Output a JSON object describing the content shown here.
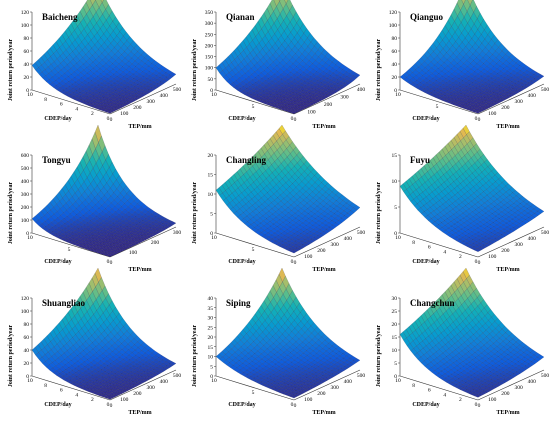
{
  "figure": {
    "zlabel": "Joint return period/year",
    "xlabel": "TEP/mm",
    "ylabel": "CDEP/day",
    "panels": [
      {
        "title": "Baicheng",
        "zticks": [
          "0",
          "20",
          "40",
          "60",
          "80",
          "100",
          "120"
        ],
        "xticks": [
          "0",
          "100",
          "200",
          "300",
          "400",
          "500"
        ],
        "yticks": [
          "0",
          "2",
          "4",
          "6",
          "8",
          "10"
        ],
        "zlabel": "Joint return period/year",
        "xlabel": "TEP/mm",
        "ylabel": "CDEP/day"
      },
      {
        "title": "Qianan",
        "zticks": [
          "0",
          "50",
          "100",
          "150",
          "200",
          "250",
          "300",
          "350"
        ],
        "xticks": [
          "0",
          "100",
          "200",
          "300",
          "400"
        ],
        "yticks": [
          "0",
          "5",
          "10"
        ],
        "zlabel": "Joint return period/year",
        "xlabel": "TEP/mm",
        "ylabel": "CDEP/day"
      },
      {
        "title": "Qianguo",
        "zticks": [
          "0",
          "20",
          "40",
          "60",
          "80",
          "100",
          "120"
        ],
        "xticks": [
          "0",
          "100",
          "200",
          "300",
          "400",
          "500"
        ],
        "yticks": [
          "0",
          "5",
          "10"
        ],
        "zlabel": "Joint return period/year",
        "xlabel": "TEP/mm",
        "ylabel": "CDEP/day"
      },
      {
        "title": "Tongyu",
        "zticks": [
          "0",
          "100",
          "200",
          "300",
          "400",
          "500",
          "600"
        ],
        "xticks": [
          "0",
          "100",
          "200",
          "300"
        ],
        "yticks": [
          "0",
          "5",
          "10"
        ],
        "zlabel": "Joint return period/year",
        "xlabel": "TEP/mm",
        "ylabel": "CDEP/day"
      },
      {
        "title": "Changling",
        "zticks": [
          "0",
          "5",
          "10",
          "15",
          "20"
        ],
        "xticks": [
          "0",
          "100",
          "200",
          "300",
          "400",
          "500"
        ],
        "yticks": [
          "0",
          "5",
          "10"
        ],
        "zlabel": "Joint return period/year",
        "xlabel": "TEP/mm",
        "ylabel": "CDEP/day"
      },
      {
        "title": "Fuyu",
        "zticks": [
          "0",
          "5",
          "10",
          "15"
        ],
        "xticks": [
          "0",
          "100",
          "200",
          "300",
          "400",
          "500"
        ],
        "yticks": [
          "0",
          "2",
          "4",
          "6",
          "8",
          "10"
        ],
        "zlabel": "Joint return period/year",
        "xlabel": "TEP/mm",
        "ylabel": "CDEP/day"
      },
      {
        "title": "Shuangliao",
        "zticks": [
          "0",
          "20",
          "40",
          "60",
          "80",
          "100",
          "120"
        ],
        "xticks": [
          "0",
          "100",
          "200",
          "300",
          "400",
          "500"
        ],
        "yticks": [
          "0",
          "2",
          "4",
          "6",
          "8",
          "10"
        ],
        "zlabel": "Joint return period/year",
        "xlabel": "TEP/mm",
        "ylabel": "CDEP/day"
      },
      {
        "title": "Siping",
        "zticks": [
          "0",
          "5",
          "10",
          "15",
          "20",
          "25",
          "30",
          "35",
          "40"
        ],
        "xticks": [
          "0",
          "100",
          "200",
          "300",
          "400",
          "500"
        ],
        "yticks": [
          "0",
          "5",
          "10"
        ],
        "zlabel": "Joint return period/year",
        "xlabel": "TEP/mm",
        "ylabel": "CDEP/day"
      },
      {
        "title": "Changchun",
        "zticks": [
          "0",
          "5",
          "10",
          "15",
          "20",
          "25",
          "30"
        ],
        "xticks": [
          "0",
          "100",
          "200",
          "300",
          "400",
          "500"
        ],
        "yticks": [
          "0",
          "2",
          "4",
          "6",
          "8",
          "10"
        ],
        "zlabel": "Joint return period/year",
        "xlabel": "TEP/mm",
        "ylabel": "CDEP/day"
      }
    ]
  },
  "chart_data": [
    {
      "type": "surface",
      "title": "Baicheng",
      "zlabel": "Joint return period/year",
      "xlabel": "TEP/mm",
      "ylabel": "CDEP/day",
      "xlim": [
        0,
        500
      ],
      "ylim": [
        0,
        10
      ],
      "zlim": [
        0,
        120
      ],
      "corner_values": {
        "x0_y0": 1,
        "xmax_y0": 15,
        "x0_ymax": 38,
        "xmax_ymax": 120
      }
    },
    {
      "type": "surface",
      "title": "Qianan",
      "zlabel": "Joint return period/year",
      "xlabel": "TEP/mm",
      "ylabel": "CDEP/day",
      "xlim": [
        0,
        400
      ],
      "ylim": [
        0,
        10
      ],
      "zlim": [
        0,
        350
      ],
      "corner_values": {
        "x0_y0": 1,
        "xmax_y0": 40,
        "x0_ymax": 100,
        "xmax_ymax": 350
      }
    },
    {
      "type": "surface",
      "title": "Qianguo",
      "zlabel": "Joint return period/year",
      "xlabel": "TEP/mm",
      "ylabel": "CDEP/day",
      "xlim": [
        0,
        500
      ],
      "ylim": [
        0,
        10
      ],
      "zlim": [
        0,
        120
      ],
      "corner_values": {
        "x0_y0": 1,
        "xmax_y0": 12,
        "x0_ymax": 20,
        "xmax_ymax": 120
      }
    },
    {
      "type": "surface",
      "title": "Tongyu",
      "zlabel": "Joint return period/year",
      "xlabel": "TEP/mm",
      "ylabel": "CDEP/day",
      "xlim": [
        0,
        300
      ],
      "ylim": [
        0,
        10
      ],
      "zlim": [
        0,
        600
      ],
      "corner_values": {
        "x0_y0": 1,
        "xmax_y0": 30,
        "x0_ymax": 110,
        "xmax_ymax": 600
      }
    },
    {
      "type": "surface",
      "title": "Changling",
      "zlabel": "Joint return period/year",
      "xlabel": "TEP/mm",
      "ylabel": "CDEP/day",
      "xlim": [
        0,
        500
      ],
      "ylim": [
        0,
        10
      ],
      "zlim": [
        0,
        20
      ],
      "corner_values": {
        "x0_y0": 1,
        "xmax_y0": 5,
        "x0_ymax": 11,
        "xmax_ymax": 20
      }
    },
    {
      "type": "surface",
      "title": "Fuyu",
      "zlabel": "Joint return period/year",
      "xlabel": "TEP/mm",
      "ylabel": "CDEP/day",
      "xlim": [
        0,
        500
      ],
      "ylim": [
        0,
        10
      ],
      "zlim": [
        0,
        15
      ],
      "corner_values": {
        "x0_y0": 1,
        "xmax_y0": 3,
        "x0_ymax": 9,
        "xmax_ymax": 15
      }
    },
    {
      "type": "surface",
      "title": "Shuangliao",
      "zlabel": "Joint return period/year",
      "xlabel": "TEP/mm",
      "ylabel": "CDEP/day",
      "xlim": [
        0,
        500
      ],
      "ylim": [
        0,
        10
      ],
      "zlim": [
        0,
        120
      ],
      "corner_values": {
        "x0_y0": 1,
        "xmax_y0": 10,
        "x0_ymax": 40,
        "xmax_ymax": 120
      }
    },
    {
      "type": "surface",
      "title": "Siping",
      "zlabel": "Joint return period/year",
      "xlabel": "TEP/mm",
      "ylabel": "CDEP/day",
      "xlim": [
        0,
        500
      ],
      "ylim": [
        0,
        10
      ],
      "zlim": [
        0,
        40
      ],
      "corner_values": {
        "x0_y0": 1,
        "xmax_y0": 5,
        "x0_ymax": 10,
        "xmax_ymax": 40
      }
    },
    {
      "type": "surface",
      "title": "Changchun",
      "zlabel": "Joint return period/year",
      "xlabel": "TEP/mm",
      "ylabel": "CDEP/day",
      "xlim": [
        0,
        500
      ],
      "ylim": [
        0,
        10
      ],
      "zlim": [
        0,
        30
      ],
      "corner_values": {
        "x0_y0": 1,
        "xmax_y0": 5,
        "x0_ymax": 16,
        "xmax_ymax": 30
      }
    }
  ]
}
